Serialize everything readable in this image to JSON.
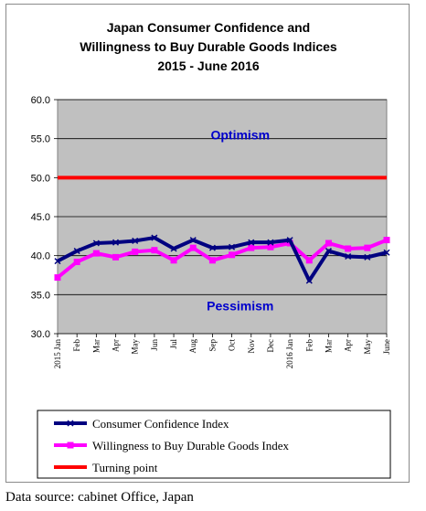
{
  "source_note": "Data source: cabinet Office, Japan",
  "chart_data": {
    "type": "line",
    "title": [
      "Japan Consumer Confidence and",
      "Willingness to Buy Durable Goods Indices",
      "2015 - June  2016"
    ],
    "categories": [
      "2015 Jan",
      "Feb",
      "Mar",
      "Apr",
      "May",
      "Jun",
      "Jul",
      "Aug",
      "Sep",
      "Oct",
      "Nov",
      "Dec",
      "2016 Jan",
      "Feb",
      "Mar",
      "Apr",
      "May",
      "June"
    ],
    "ylim": [
      30,
      60
    ],
    "yticks": [
      "30.0",
      "35.0",
      "40.0",
      "45.0",
      "50.0",
      "55.0",
      "60.0"
    ],
    "grid": true,
    "legend_position": "bottom",
    "annotations": [
      {
        "text": "Optimism",
        "x": "Nov",
        "y": 55.5
      },
      {
        "text": "Pessimism",
        "x": "Nov",
        "y": 33.6
      }
    ],
    "series": [
      {
        "name": "Consumer Confidence Index",
        "color": "#000080",
        "values": [
          39.3,
          40.6,
          41.6,
          41.7,
          41.9,
          42.3,
          40.9,
          42.0,
          41.0,
          41.1,
          41.7,
          41.7,
          42.0,
          36.8,
          40.6,
          39.9,
          39.8,
          40.4
        ]
      },
      {
        "name": "Willingness to Buy Durable Goods Index",
        "color": "#ff00ff",
        "values": [
          37.2,
          39.2,
          40.3,
          39.8,
          40.5,
          40.7,
          39.4,
          41.0,
          39.4,
          40.1,
          41.0,
          41.1,
          41.6,
          39.4,
          41.6,
          40.9,
          41.0,
          42.0
        ]
      },
      {
        "name": "Turning point",
        "color": "#ff0000",
        "values": [
          50,
          50,
          50,
          50,
          50,
          50,
          50,
          50,
          50,
          50,
          50,
          50,
          50,
          50,
          50,
          50,
          50,
          50
        ]
      }
    ]
  }
}
